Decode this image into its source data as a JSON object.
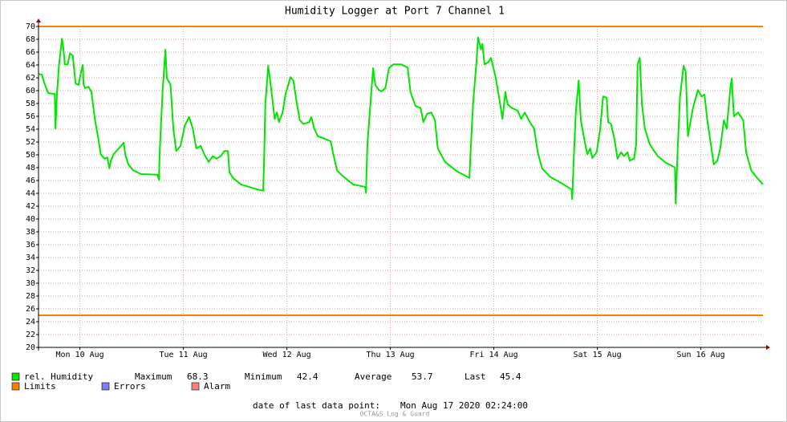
{
  "chart_data": {
    "type": "line",
    "title": "Humidity Logger at Port 7 Channel 1",
    "x": [
      "2020-08-10T02:24",
      "2020-08-10T03:10",
      "2020-08-10T03:50",
      "2020-08-10T04:40",
      "2020-08-10T06:10",
      "2020-08-10T06:20",
      "2020-08-10T06:40",
      "2020-08-10T07:10",
      "2020-08-10T07:50",
      "2020-08-10T08:10",
      "2020-08-10T08:30",
      "2020-08-10T09:10",
      "2020-08-10T09:40",
      "2020-08-10T10:20",
      "2020-08-10T11:00",
      "2020-08-10T11:40",
      "2020-08-10T12:20",
      "2020-08-10T12:40",
      "2020-08-10T12:50",
      "2020-08-10T13:10",
      "2020-08-10T14:00",
      "2020-08-10T14:40",
      "2020-08-10T15:30",
      "2020-08-10T16:10",
      "2020-08-10T16:50",
      "2020-08-10T17:40",
      "2020-08-10T18:20",
      "2020-08-10T18:50",
      "2020-08-10T19:10",
      "2020-08-10T19:50",
      "2020-08-10T21:00",
      "2020-08-10T22:10",
      "2020-08-10T22:30",
      "2020-08-10T23:10",
      "2020-08-11T00:20",
      "2020-08-11T02:10",
      "2020-08-11T06:00",
      "2020-08-11T06:20",
      "2020-08-11T06:30",
      "2020-08-11T07:10",
      "2020-08-11T07:50",
      "2020-08-11T08:10",
      "2020-08-11T09:00",
      "2020-08-11T09:40",
      "2020-08-11T10:20",
      "2020-08-11T11:20",
      "2020-08-11T12:20",
      "2020-08-11T13:20",
      "2020-08-11T14:10",
      "2020-08-11T15:00",
      "2020-08-11T16:00",
      "2020-08-11T16:50",
      "2020-08-11T17:50",
      "2020-08-11T18:50",
      "2020-08-11T19:40",
      "2020-08-11T20:40",
      "2020-08-11T21:30",
      "2020-08-11T22:20",
      "2020-08-11T22:40",
      "2020-08-11T23:30",
      "2020-08-12T01:20",
      "2020-08-12T04:10",
      "2020-08-12T06:30",
      "2020-08-12T06:40",
      "2020-08-12T07:00",
      "2020-08-12T07:40",
      "2020-08-12T08:20",
      "2020-08-12T09:10",
      "2020-08-12T09:40",
      "2020-08-12T10:10",
      "2020-08-12T11:00",
      "2020-08-12T11:40",
      "2020-08-12T12:50",
      "2020-08-12T13:30",
      "2020-08-12T14:20",
      "2020-08-12T15:00",
      "2020-08-12T15:50",
      "2020-08-12T17:10",
      "2020-08-12T17:40",
      "2020-08-12T18:20",
      "2020-08-12T19:10",
      "2020-08-12T20:50",
      "2020-08-12T22:10",
      "2020-08-12T22:40",
      "2020-08-12T23:40",
      "2020-08-13T01:30",
      "2020-08-13T03:20",
      "2020-08-13T06:10",
      "2020-08-13T06:20",
      "2020-08-13T06:40",
      "2020-08-13T07:30",
      "2020-08-13T08:00",
      "2020-08-13T08:30",
      "2020-08-13T09:20",
      "2020-08-13T10:00",
      "2020-08-13T10:50",
      "2020-08-13T11:40",
      "2020-08-13T12:40",
      "2020-08-13T14:30",
      "2020-08-13T16:00",
      "2020-08-13T16:40",
      "2020-08-13T17:50",
      "2020-08-13T19:00",
      "2020-08-13T19:40",
      "2020-08-13T20:30",
      "2020-08-13T21:30",
      "2020-08-13T22:20",
      "2020-08-13T23:00",
      "2020-08-14T00:40",
      "2020-08-14T03:30",
      "2020-08-14T06:20",
      "2020-08-14T06:30",
      "2020-08-14T07:10",
      "2020-08-14T08:00",
      "2020-08-14T08:20",
      "2020-08-14T09:00",
      "2020-08-14T09:20",
      "2020-08-14T09:50",
      "2020-08-14T10:40",
      "2020-08-14T11:20",
      "2020-08-14T12:20",
      "2020-08-14T13:10",
      "2020-08-14T14:00",
      "2020-08-14T14:40",
      "2020-08-14T15:10",
      "2020-08-14T16:10",
      "2020-08-14T17:30",
      "2020-08-14T18:20",
      "2020-08-14T19:10",
      "2020-08-14T20:20",
      "2020-08-14T21:20",
      "2020-08-14T22:10",
      "2020-08-14T23:10",
      "2020-08-15T01:00",
      "2020-08-15T03:40",
      "2020-08-15T06:00",
      "2020-08-15T06:10",
      "2020-08-15T06:30",
      "2020-08-15T07:00",
      "2020-08-15T07:40",
      "2020-08-15T08:10",
      "2020-08-15T09:00",
      "2020-08-15T09:40",
      "2020-08-15T10:20",
      "2020-08-15T10:50",
      "2020-08-15T11:50",
      "2020-08-15T12:40",
      "2020-08-15T13:20",
      "2020-08-15T14:10",
      "2020-08-15T14:30",
      "2020-08-15T15:10",
      "2020-08-15T16:00",
      "2020-08-15T16:40",
      "2020-08-15T17:30",
      "2020-08-15T18:10",
      "2020-08-15T19:00",
      "2020-08-15T19:30",
      "2020-08-15T20:30",
      "2020-08-15T21:00",
      "2020-08-15T21:20",
      "2020-08-15T21:50",
      "2020-08-15T22:20",
      "2020-08-15T23:00",
      "2020-08-16T00:10",
      "2020-08-16T02:00",
      "2020-08-16T03:50",
      "2020-08-16T05:50",
      "2020-08-16T06:00",
      "2020-08-16T06:10",
      "2020-08-16T06:40",
      "2020-08-16T07:10",
      "2020-08-16T08:00",
      "2020-08-16T08:30",
      "2020-08-16T09:00",
      "2020-08-16T09:30",
      "2020-08-16T10:10",
      "2020-08-16T11:20",
      "2020-08-16T12:10",
      "2020-08-16T12:50",
      "2020-08-16T13:30",
      "2020-08-16T14:20",
      "2020-08-16T15:00",
      "2020-08-16T15:50",
      "2020-08-16T16:30",
      "2020-08-16T17:20",
      "2020-08-16T18:00",
      "2020-08-16T18:50",
      "2020-08-16T19:10",
      "2020-08-16T19:40",
      "2020-08-16T20:40",
      "2020-08-16T21:50",
      "2020-08-16T22:30",
      "2020-08-16T23:40",
      "2020-08-17T01:10",
      "2020-08-17T02:24"
    ],
    "series": [
      {
        "name": "rel. Humidity",
        "color": "#00e600",
        "values": [
          62.6,
          62.5,
          61.0,
          59.6,
          59.5,
          54.1,
          59.4,
          64.1,
          68.1,
          66.6,
          64.1,
          64.1,
          65.8,
          65.5,
          61.1,
          60.9,
          63.1,
          64.0,
          61.0,
          60.4,
          60.6,
          59.8,
          55.4,
          52.9,
          50.1,
          49.4,
          49.6,
          47.9,
          49.1,
          50.1,
          51.0,
          51.9,
          50.1,
          48.6,
          47.6,
          47.0,
          46.9,
          46.1,
          50.4,
          59.8,
          66.4,
          61.9,
          61.0,
          54.1,
          50.6,
          51.4,
          54.6,
          55.9,
          54.1,
          51.0,
          51.4,
          50.1,
          48.9,
          49.8,
          49.4,
          49.8,
          50.6,
          50.6,
          47.3,
          46.4,
          45.4,
          44.8,
          44.4,
          47.9,
          57.9,
          63.9,
          60.4,
          55.6,
          56.6,
          55.1,
          56.6,
          59.4,
          62.1,
          61.6,
          57.9,
          55.4,
          54.8,
          55.1,
          55.9,
          54.1,
          52.9,
          52.5,
          52.1,
          50.4,
          47.5,
          46.4,
          45.4,
          45.0,
          44.1,
          51.6,
          59.1,
          63.5,
          60.9,
          60.1,
          59.9,
          60.4,
          63.5,
          64.1,
          64.1,
          63.6,
          59.8,
          57.6,
          57.3,
          55.1,
          56.4,
          56.6,
          55.4,
          51.0,
          48.9,
          47.4,
          46.4,
          49.1,
          57.9,
          64.8,
          68.3,
          66.4,
          67.3,
          64.1,
          64.4,
          65.1,
          62.3,
          59.1,
          55.6,
          59.8,
          57.9,
          57.3,
          56.9,
          55.6,
          56.6,
          55.1,
          54.1,
          50.4,
          47.9,
          46.6,
          45.6,
          44.6,
          43.1,
          49.1,
          56.6,
          61.6,
          55.4,
          52.3,
          50.1,
          51.0,
          49.5,
          50.4,
          54.1,
          59.1,
          58.9,
          55.1,
          54.8,
          52.3,
          49.4,
          50.4,
          49.8,
          50.4,
          49.1,
          49.4,
          51.6,
          64.1,
          65.1,
          57.9,
          54.1,
          51.6,
          49.8,
          48.8,
          48.1,
          47.9,
          42.4,
          51.6,
          59.1,
          63.9,
          62.9,
          52.9,
          54.8,
          57.3,
          60.1,
          59.1,
          59.4,
          55.4,
          51.6,
          48.5,
          49.1,
          51.0,
          55.4,
          54.1,
          60.4,
          61.9,
          56.0,
          56.6,
          55.4,
          50.4,
          47.6,
          46.3,
          45.4
        ]
      }
    ],
    "xlim": [
      "2020-08-10T02:24",
      "2020-08-17T02:24"
    ],
    "xticks": [
      {
        "value": "2020-08-10T12:00",
        "label": "Mon 10 Aug"
      },
      {
        "value": "2020-08-11T12:00",
        "label": "Tue 11 Aug"
      },
      {
        "value": "2020-08-12T12:00",
        "label": "Wed 12 Aug"
      },
      {
        "value": "2020-08-13T12:00",
        "label": "Thu 13 Aug"
      },
      {
        "value": "2020-08-14T12:00",
        "label": "Fri 14 Aug"
      },
      {
        "value": "2020-08-15T12:00",
        "label": "Sat 15 Aug"
      },
      {
        "value": "2020-08-16T12:00",
        "label": "Sun 16 Aug"
      }
    ],
    "ylim": [
      20,
      70
    ],
    "yticks": [
      20,
      22,
      24,
      26,
      28,
      30,
      32,
      34,
      36,
      38,
      40,
      42,
      44,
      46,
      48,
      50,
      52,
      54,
      56,
      58,
      60,
      62,
      64,
      66,
      68,
      70
    ],
    "grid": true,
    "limits": {
      "name": "Limits",
      "color": "#ff7f00",
      "values": [
        70,
        25
      ]
    },
    "legend_extra": [
      {
        "name": "Errors",
        "color": "#7f7fff"
      },
      {
        "name": "Alarm",
        "color": "#ff7f7f"
      }
    ],
    "stats": [
      {
        "label": "Maximum",
        "value": 68.3
      },
      {
        "label": "Minimum",
        "value": 42.4
      },
      {
        "label": "Average",
        "value": 53.7
      },
      {
        "label": "Last",
        "value": 45.4
      }
    ],
    "footer": {
      "label": "date of last data point:",
      "value": "Mon Aug 17 2020 02:24:00"
    },
    "credit": "OCTA&S Log & Guard"
  }
}
